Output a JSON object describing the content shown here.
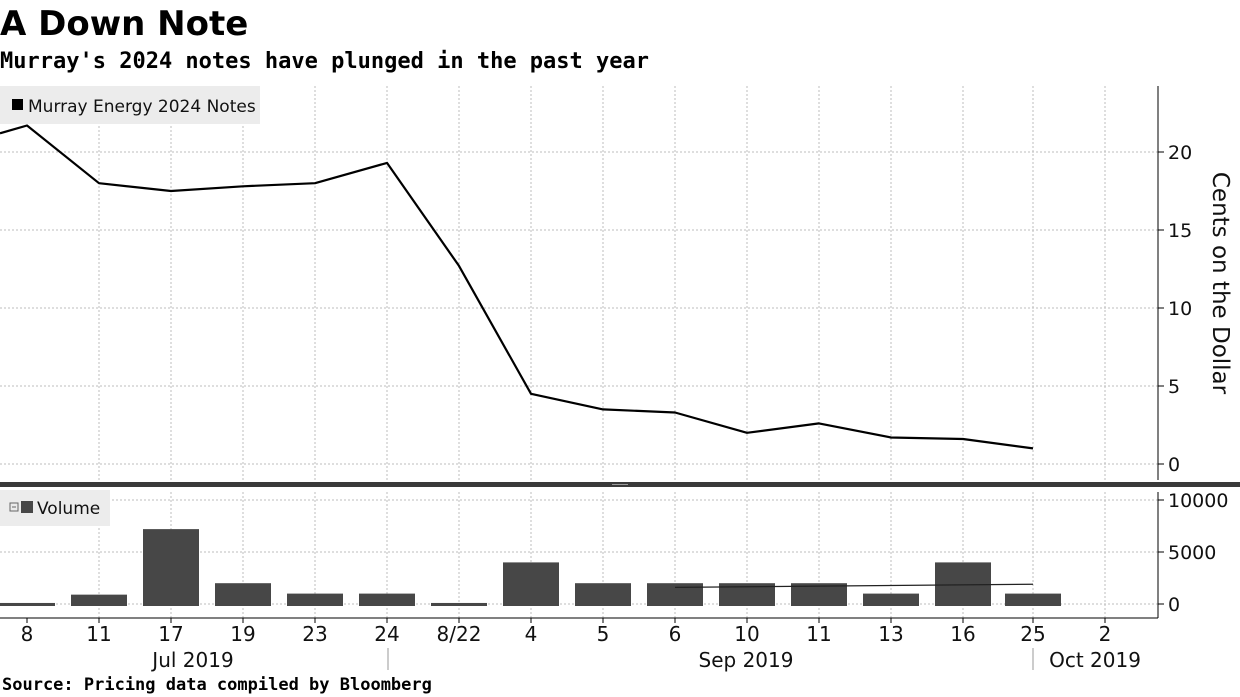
{
  "header": {
    "title": "A Down Note",
    "subtitle": "Murray's 2024 notes have plunged in the past year"
  },
  "source": "Source: Pricing data compiled by Bloomberg",
  "colors": {
    "price_line": "#000000",
    "volume_bar": "#474747",
    "grid": "#bdbdbd",
    "legend_bg": "#ececec",
    "panel_divider": "#3a3a3a"
  },
  "chart_data": [
    {
      "type": "line",
      "panel": "price",
      "legend": "Murray Energy 2024 Notes",
      "ylabel": "Cents on the Dollar",
      "ylim": [
        0,
        24
      ],
      "yticks": [
        0,
        5,
        10,
        15,
        20
      ],
      "grid": true,
      "legend_position": "top-left",
      "x": [
        "Jul 7 2019",
        "Jul 8 2019",
        "Jul 11 2019",
        "Jul 17 2019",
        "Jul 19 2019",
        "Jul 23 2019",
        "Jul 24 2019",
        "Aug 22 2019",
        "Sep 4 2019",
        "Sep 5 2019",
        "Sep 6 2019",
        "Sep 10 2019",
        "Sep 11 2019",
        "Sep 13 2019",
        "Sep 16 2019",
        "Sep 25 2019"
      ],
      "series": [
        {
          "values": [
            21.2,
            21.7,
            18.0,
            17.5,
            17.8,
            18.0,
            19.3,
            12.7,
            4.5,
            3.5,
            3.3,
            2.0,
            2.6,
            1.7,
            1.6,
            1.0
          ]
        }
      ]
    },
    {
      "type": "bar",
      "panel": "volume",
      "legend": "Volume",
      "ylim": [
        0,
        12000
      ],
      "yticks": [
        0,
        5000,
        10000
      ],
      "grid": true,
      "legend_position": "top-left",
      "categories": [
        "8",
        "11",
        "17",
        "19",
        "23",
        "24",
        "8/22",
        "4",
        "5",
        "6",
        "10",
        "11",
        "13",
        "16",
        "25"
      ],
      "values": [
        100,
        900,
        7200,
        2000,
        1000,
        1000,
        100,
        4000,
        2000,
        2000,
        2000,
        2000,
        1000,
        4000,
        1000
      ],
      "trend_line": [
        {
          "x": "6",
          "value": 1600
        },
        {
          "x": "25",
          "value": 1900
        }
      ]
    }
  ],
  "x_axis": {
    "ticks": [
      "8",
      "11",
      "17",
      "19",
      "23",
      "24",
      "8/22",
      "4",
      "5",
      "6",
      "10",
      "11",
      "13",
      "16",
      "25",
      "2"
    ],
    "month_labels": [
      {
        "label": "Jul 2019"
      },
      {
        "label": "Sep 2019"
      },
      {
        "label": "Oct 2019"
      }
    ]
  }
}
